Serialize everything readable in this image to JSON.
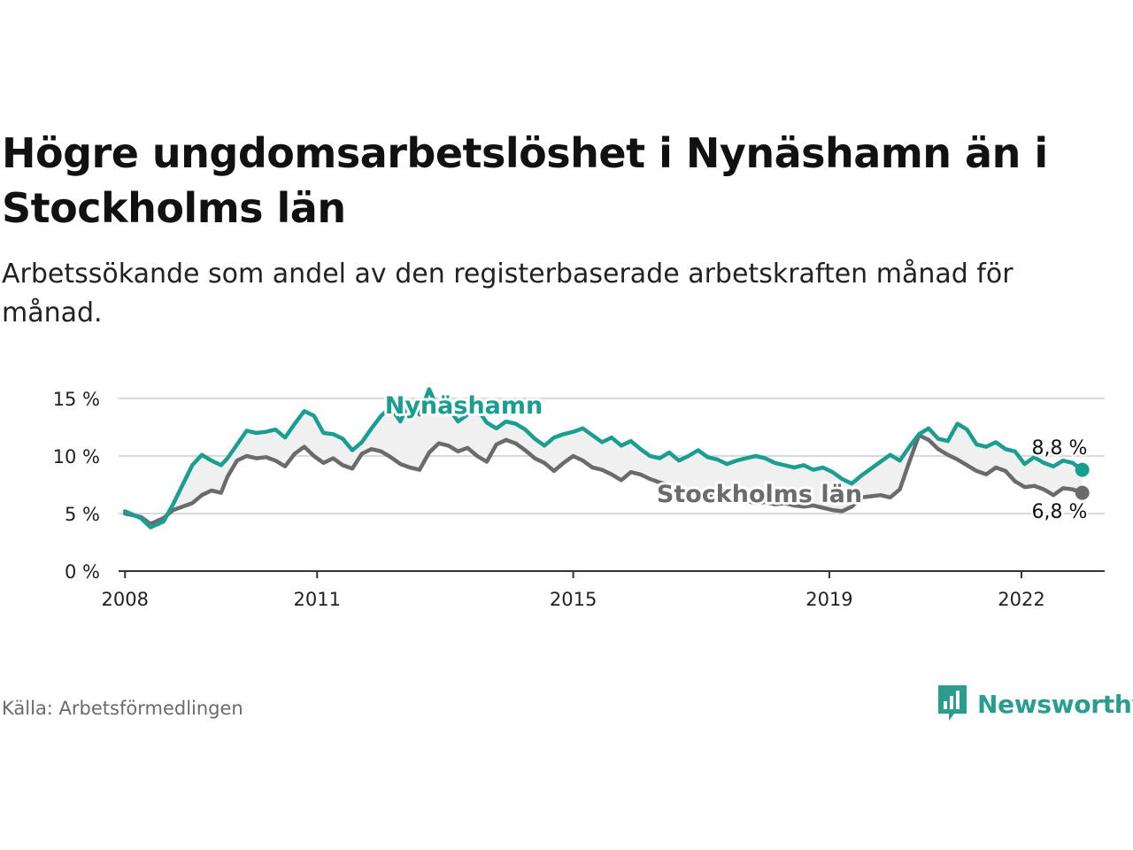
{
  "title": "Högre ungdomsarbetslöshet i Nynäshamn än i Stockholms län",
  "subtitle": "Arbetssökande som andel av den registerbaserade arbetskraften månad för månad.",
  "source": "Källa: Arbetsförmedlingen",
  "brand": {
    "name": "Newsworthy",
    "icon": "newsworthy-chart-icon",
    "color": "#2a9d8f"
  },
  "colors": {
    "nynashamn": "#1a9e8f",
    "stockholm": "#6b6b6d",
    "band": "#f0f0f0",
    "grid": "#d9d9d9",
    "axis": "#333333"
  },
  "chart_data": {
    "type": "line",
    "title": "Högre ungdomsarbetslöshet i Nynäshamn än i Stockholms län",
    "xlabel": "",
    "ylabel": "",
    "xlim": [
      2007.9,
      2023.3
    ],
    "ylim": [
      0,
      15
    ],
    "y_ticks": [
      0,
      5,
      10,
      15
    ],
    "y_tick_labels": [
      "0 %",
      "5 %",
      "10 %",
      "15 %"
    ],
    "x_ticks": [
      2008,
      2011,
      2015,
      2019,
      2022
    ],
    "x_tick_labels": [
      "2008",
      "2011",
      "2015",
      "2019",
      "2022"
    ],
    "grid": true,
    "series": [
      {
        "name": "Nynäshamn",
        "label": "Nynäshamn",
        "end_label": "8,8 %",
        "x": [
          2008.0,
          2008.25,
          2008.4,
          2008.6,
          2008.75,
          2008.9,
          2009.05,
          2009.2,
          2009.35,
          2009.5,
          2009.6,
          2009.75,
          2009.9,
          2010.05,
          2010.2,
          2010.35,
          2010.5,
          2010.65,
          2010.8,
          2010.95,
          2011.1,
          2011.25,
          2011.4,
          2011.55,
          2011.7,
          2011.85,
          2012.0,
          2012.15,
          2012.3,
          2012.45,
          2012.6,
          2012.75,
          2012.9,
          2013.05,
          2013.2,
          2013.35,
          2013.5,
          2013.65,
          2013.8,
          2013.95,
          2014.1,
          2014.25,
          2014.4,
          2014.55,
          2014.7,
          2014.85,
          2015.0,
          2015.15,
          2015.3,
          2015.45,
          2015.6,
          2015.75,
          2015.9,
          2016.05,
          2016.2,
          2016.35,
          2016.5,
          2016.65,
          2016.8,
          2016.95,
          2017.1,
          2017.25,
          2017.4,
          2017.55,
          2017.7,
          2017.85,
          2018.0,
          2018.15,
          2018.3,
          2018.45,
          2018.6,
          2018.75,
          2018.9,
          2019.05,
          2019.2,
          2019.35,
          2019.5,
          2019.65,
          2019.8,
          2019.95,
          2020.1,
          2020.25,
          2020.4,
          2020.55,
          2020.7,
          2020.85,
          2021.0,
          2021.15,
          2021.3,
          2021.45,
          2021.6,
          2021.75,
          2021.9,
          2022.05,
          2022.2,
          2022.35,
          2022.5,
          2022.65,
          2022.8,
          2022.95
        ],
        "values": [
          5.2,
          4.6,
          3.8,
          4.3,
          5.8,
          7.5,
          9.2,
          10.1,
          9.6,
          9.2,
          9.8,
          11.0,
          12.2,
          12.0,
          12.1,
          12.3,
          11.6,
          12.8,
          13.9,
          13.5,
          12.0,
          11.9,
          11.5,
          10.5,
          11.2,
          12.4,
          13.5,
          14.2,
          13.0,
          14.8,
          13.6,
          15.8,
          13.9,
          14.2,
          13.0,
          13.6,
          14.1,
          12.9,
          12.4,
          13.0,
          12.8,
          12.3,
          11.5,
          10.9,
          11.6,
          11.9,
          12.1,
          12.4,
          11.8,
          11.2,
          11.6,
          10.9,
          11.3,
          10.6,
          10.0,
          9.8,
          10.3,
          9.6,
          10.0,
          10.5,
          9.9,
          9.7,
          9.3,
          9.6,
          9.8,
          10.0,
          9.8,
          9.4,
          9.2,
          9.0,
          9.2,
          8.8,
          9.0,
          8.6,
          8.0,
          7.6,
          8.3,
          8.9,
          9.5,
          10.1,
          9.6,
          10.8,
          11.9,
          12.4,
          11.5,
          11.3,
          12.8,
          12.3,
          11.0,
          10.8,
          11.2,
          10.6,
          10.4,
          9.3,
          9.9,
          9.4,
          9.1,
          9.6,
          9.4,
          8.8
        ]
      },
      {
        "name": "Stockholms län",
        "label": "Stockholms län",
        "end_label": "6,8 %",
        "x": [
          2008.0,
          2008.25,
          2008.4,
          2008.6,
          2008.75,
          2008.9,
          2009.05,
          2009.2,
          2009.35,
          2009.5,
          2009.6,
          2009.75,
          2009.9,
          2010.05,
          2010.2,
          2010.35,
          2010.5,
          2010.65,
          2010.8,
          2010.95,
          2011.1,
          2011.25,
          2011.4,
          2011.55,
          2011.7,
          2011.85,
          2012.0,
          2012.15,
          2012.3,
          2012.45,
          2012.6,
          2012.75,
          2012.9,
          2013.05,
          2013.2,
          2013.35,
          2013.5,
          2013.65,
          2013.8,
          2013.95,
          2014.1,
          2014.25,
          2014.4,
          2014.55,
          2014.7,
          2014.85,
          2015.0,
          2015.15,
          2015.3,
          2015.45,
          2015.6,
          2015.75,
          2015.9,
          2016.05,
          2016.2,
          2016.35,
          2016.5,
          2016.65,
          2016.8,
          2016.95,
          2017.1,
          2017.25,
          2017.4,
          2017.55,
          2017.7,
          2017.85,
          2018.0,
          2018.15,
          2018.3,
          2018.45,
          2018.6,
          2018.75,
          2018.9,
          2019.05,
          2019.2,
          2019.35,
          2019.5,
          2019.65,
          2019.8,
          2019.95,
          2020.1,
          2020.25,
          2020.4,
          2020.55,
          2020.7,
          2020.85,
          2021.0,
          2021.15,
          2021.3,
          2021.45,
          2021.6,
          2021.75,
          2021.9,
          2022.05,
          2022.2,
          2022.35,
          2022.5,
          2022.65,
          2022.8,
          2022.95
        ],
        "values": [
          5.0,
          4.7,
          4.1,
          4.6,
          5.3,
          5.6,
          5.9,
          6.6,
          7.0,
          6.8,
          8.2,
          9.6,
          10.0,
          9.8,
          9.9,
          9.6,
          9.1,
          10.2,
          10.8,
          10.0,
          9.4,
          9.8,
          9.2,
          8.9,
          10.2,
          10.6,
          10.4,
          9.9,
          9.3,
          9.0,
          8.8,
          10.3,
          11.1,
          10.9,
          10.4,
          10.7,
          10.0,
          9.5,
          11.0,
          11.4,
          11.1,
          10.5,
          9.8,
          9.4,
          8.7,
          9.4,
          10.0,
          9.6,
          9.0,
          8.8,
          8.4,
          7.9,
          8.6,
          8.4,
          8.0,
          7.7,
          7.5,
          7.2,
          7.0,
          6.9,
          6.6,
          6.4,
          6.2,
          6.0,
          6.1,
          5.9,
          6.0,
          5.8,
          5.9,
          5.7,
          5.6,
          5.7,
          5.5,
          5.3,
          5.2,
          5.6,
          6.4,
          6.5,
          6.6,
          6.4,
          7.1,
          9.5,
          11.8,
          11.4,
          10.6,
          10.1,
          9.7,
          9.2,
          8.7,
          8.4,
          9.0,
          8.7,
          7.8,
          7.3,
          7.4,
          7.1,
          6.6,
          7.2,
          7.1,
          6.8
        ]
      }
    ]
  }
}
